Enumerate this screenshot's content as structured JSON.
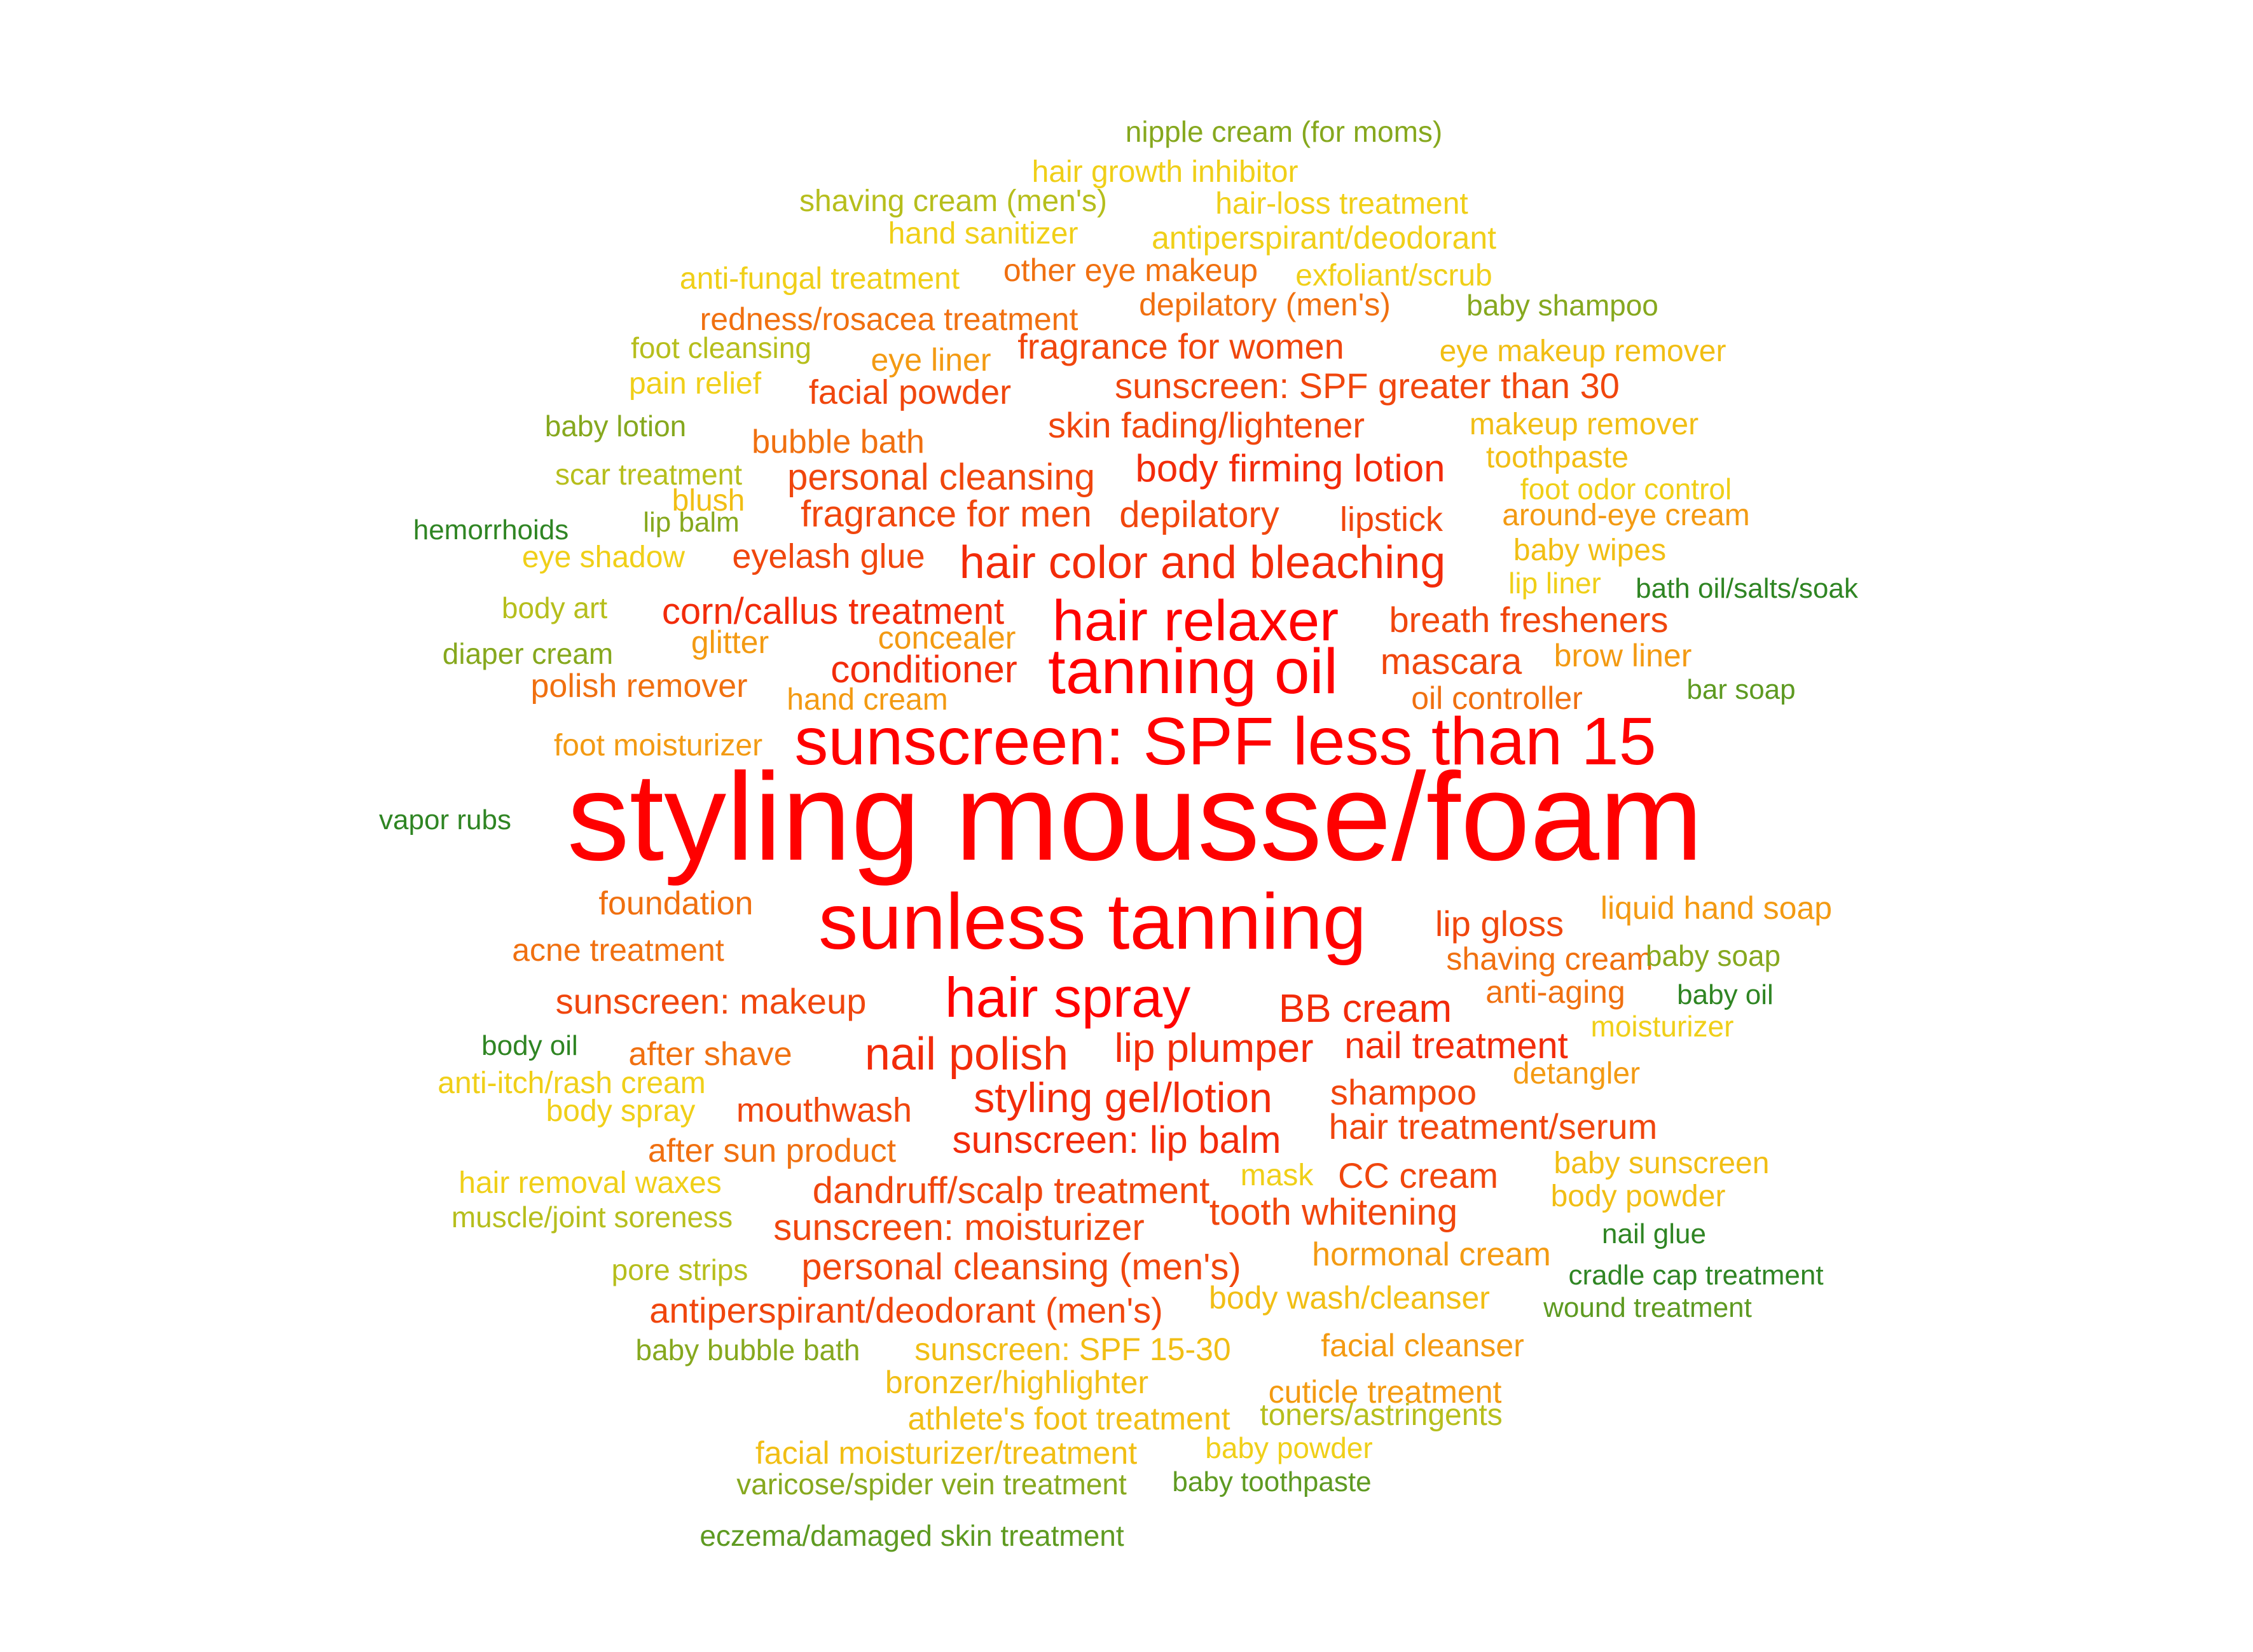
{
  "colors": {
    "red": "#FF0000",
    "red_orange": "#F22B0A",
    "orange_red": "#F0460D",
    "orange": "#F07010",
    "orange_light": "#F39A12",
    "amber": "#F1BE14",
    "gold": "#F0CF18",
    "yellow_green": "#B6BE1C",
    "olive": "#86A81E",
    "green": "#5E9A21",
    "dark_green": "#2F8523"
  },
  "words": [
    {
      "text": "styling mousse/foam",
      "color": "red"
    },
    {
      "text": "sunless tanning",
      "color": "red"
    },
    {
      "text": "sunscreen: SPF less than 15",
      "color": "red"
    },
    {
      "text": "tanning oil",
      "color": "red"
    },
    {
      "text": "hair relaxer",
      "color": "red"
    },
    {
      "text": "hair spray",
      "color": "red"
    },
    {
      "text": "hair color and bleaching",
      "color": "red_orange"
    },
    {
      "text": "nail polish",
      "color": "red_orange"
    },
    {
      "text": "styling gel/lotion",
      "color": "red_orange"
    },
    {
      "text": "lip plumper",
      "color": "red_orange"
    },
    {
      "text": "BB cream",
      "color": "red_orange"
    },
    {
      "text": "conditioner",
      "color": "red_orange"
    },
    {
      "text": "sunscreen: lip balm",
      "color": "red_orange"
    },
    {
      "text": "body firming lotion",
      "color": "red_orange"
    },
    {
      "text": "nail treatment",
      "color": "red_orange"
    },
    {
      "text": "corn/callus treatment",
      "color": "red_orange"
    },
    {
      "text": "mascara",
      "color": "orange_red"
    },
    {
      "text": "skin fading/lightener",
      "color": "orange_red"
    },
    {
      "text": "depilatory",
      "color": "orange_red"
    },
    {
      "text": "sunscreen: SPF greater than 30",
      "color": "orange_red"
    },
    {
      "text": "dandruff/scalp treatment",
      "color": "orange_red"
    },
    {
      "text": "lip gloss",
      "color": "orange_red"
    },
    {
      "text": "fragrance for men",
      "color": "orange_red"
    },
    {
      "text": "sunscreen: moisturizer",
      "color": "orange_red"
    },
    {
      "text": "fragrance for women",
      "color": "orange_red"
    },
    {
      "text": "personal cleansing",
      "color": "orange_red"
    },
    {
      "text": "sunscreen: makeup",
      "color": "orange_red"
    },
    {
      "text": "lipstick",
      "color": "orange_red"
    },
    {
      "text": "eyelash glue",
      "color": "orange_red"
    },
    {
      "text": "tooth whitening",
      "color": "orange_red"
    },
    {
      "text": "breath fresheners",
      "color": "orange_red"
    },
    {
      "text": "personal cleansing (men's)",
      "color": "orange_red"
    },
    {
      "text": "antiperspirant/deodorant (men's)",
      "color": "orange_red"
    },
    {
      "text": "CC cream",
      "color": "orange_red"
    },
    {
      "text": "shampoo",
      "color": "orange_red"
    },
    {
      "text": "hair treatment/serum",
      "color": "orange_red"
    },
    {
      "text": "mouthwash",
      "color": "orange_red"
    },
    {
      "text": "facial powder",
      "color": "orange_red"
    },
    {
      "text": "shaving cream",
      "color": "orange"
    },
    {
      "text": "anti-aging",
      "color": "orange"
    },
    {
      "text": "depilatory (men's)",
      "color": "orange"
    },
    {
      "text": "other eye makeup",
      "color": "orange"
    },
    {
      "text": "bubble bath",
      "color": "orange"
    },
    {
      "text": "polish remover",
      "color": "orange"
    },
    {
      "text": "acne treatment",
      "color": "orange"
    },
    {
      "text": "foundation",
      "color": "orange"
    },
    {
      "text": "after sun product",
      "color": "orange"
    },
    {
      "text": "oil controller",
      "color": "orange"
    },
    {
      "text": "after shave",
      "color": "orange"
    },
    {
      "text": "redness/rosacea treatment",
      "color": "orange"
    },
    {
      "text": "brow liner",
      "color": "orange_light"
    },
    {
      "text": "hand cream",
      "color": "orange_light"
    },
    {
      "text": "glitter",
      "color": "orange_light"
    },
    {
      "text": "concealer",
      "color": "orange_light"
    },
    {
      "text": "hormonal cream",
      "color": "orange_light"
    },
    {
      "text": "facial cleanser",
      "color": "orange_light"
    },
    {
      "text": "detangler",
      "color": "orange_light"
    },
    {
      "text": "liquid hand soap",
      "color": "orange_light"
    },
    {
      "text": "cuticle treatment",
      "color": "orange_light"
    },
    {
      "text": "eye liner",
      "color": "orange_light"
    },
    {
      "text": "foot moisturizer",
      "color": "orange_light"
    },
    {
      "text": "around-eye cream",
      "color": "orange_light"
    },
    {
      "text": "body wash/cleanser",
      "color": "amber"
    },
    {
      "text": "sunscreen: SPF 15-30",
      "color": "amber"
    },
    {
      "text": "bronzer/highlighter",
      "color": "amber"
    },
    {
      "text": "athlete's foot treatment",
      "color": "amber"
    },
    {
      "text": "facial moisturizer/treatment",
      "color": "amber"
    },
    {
      "text": "baby sunscreen",
      "color": "amber"
    },
    {
      "text": "body powder",
      "color": "amber"
    },
    {
      "text": "eye makeup remover",
      "color": "amber"
    },
    {
      "text": "makeup remover",
      "color": "amber"
    },
    {
      "text": "toothpaste",
      "color": "amber"
    },
    {
      "text": "baby wipes",
      "color": "amber"
    },
    {
      "text": "blush",
      "color": "amber"
    },
    {
      "text": "exfoliant/scrub",
      "color": "gold"
    },
    {
      "text": "antiperspirant/deodorant",
      "color": "gold"
    },
    {
      "text": "hand sanitizer",
      "color": "gold"
    },
    {
      "text": "hair-loss treatment",
      "color": "gold"
    },
    {
      "text": "hair growth inhibitor",
      "color": "gold"
    },
    {
      "text": "anti-fungal treatment",
      "color": "gold"
    },
    {
      "text": "pain relief",
      "color": "gold"
    },
    {
      "text": "eye shadow",
      "color": "gold"
    },
    {
      "text": "lip liner",
      "color": "gold"
    },
    {
      "text": "foot odor control",
      "color": "gold"
    },
    {
      "text": "moisturizer",
      "color": "gold"
    },
    {
      "text": "mask",
      "color": "gold"
    },
    {
      "text": "body spray",
      "color": "gold"
    },
    {
      "text": "anti-itch/rash cream",
      "color": "gold"
    },
    {
      "text": "hair removal waxes",
      "color": "gold"
    },
    {
      "text": "baby powder",
      "color": "gold"
    },
    {
      "text": "scar treatment",
      "color": "yellow_green"
    },
    {
      "text": "body art",
      "color": "yellow_green"
    },
    {
      "text": "shaving cream (men's)",
      "color": "yellow_green"
    },
    {
      "text": "foot cleansing",
      "color": "yellow_green"
    },
    {
      "text": "toners/astringents",
      "color": "yellow_green"
    },
    {
      "text": "muscle/joint soreness",
      "color": "yellow_green"
    },
    {
      "text": "pore strips",
      "color": "yellow_green"
    },
    {
      "text": "baby lotion",
      "color": "olive"
    },
    {
      "text": "diaper cream",
      "color": "olive"
    },
    {
      "text": "baby shampoo",
      "color": "olive"
    },
    {
      "text": "baby soap",
      "color": "olive"
    },
    {
      "text": "varicose/spider vein treatment",
      "color": "olive"
    },
    {
      "text": "baby bubble bath",
      "color": "olive"
    },
    {
      "text": "nipple cream (for moms)",
      "color": "olive"
    },
    {
      "text": "lip balm",
      "color": "olive"
    },
    {
      "text": "bar soap",
      "color": "green"
    },
    {
      "text": "eczema/damaged skin treatment",
      "color": "green"
    },
    {
      "text": "wound treatment",
      "color": "green"
    },
    {
      "text": "baby toothpaste",
      "color": "green"
    },
    {
      "text": "baby oil",
      "color": "dark_green"
    },
    {
      "text": "body oil",
      "color": "dark_green"
    },
    {
      "text": "nail glue",
      "color": "dark_green"
    },
    {
      "text": "cradle cap treatment",
      "color": "dark_green"
    },
    {
      "text": "bath oil/salts/soak",
      "color": "dark_green"
    },
    {
      "text": "vapor rubs",
      "color": "dark_green"
    },
    {
      "text": "hemorrhoids",
      "color": "dark_green"
    }
  ]
}
